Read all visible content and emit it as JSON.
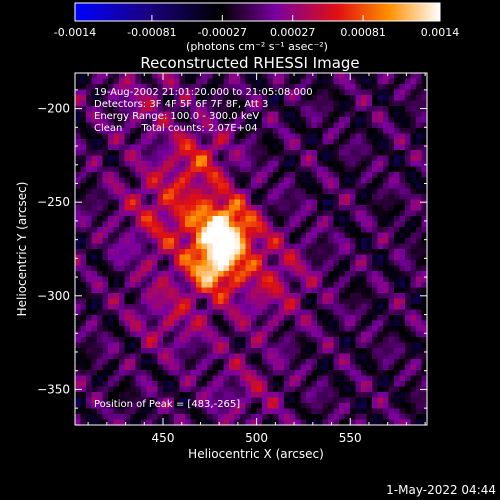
{
  "chart_data": {
    "type": "heatmap",
    "title": "Reconstructed RHESSI Image",
    "xlabel": "Heliocentric X (arcsec)",
    "ylabel": "Heliocentric Y (arcsec)",
    "xlim": [
      403,
      591
    ],
    "ylim": [
      -369,
      -181
    ],
    "xticks": [
      450,
      500,
      550
    ],
    "yticks": [
      -200,
      -250,
      -300,
      -350
    ],
    "colorbar": {
      "min": -0.0014,
      "max": 0.0014,
      "ticks": [
        "-0.0014",
        "-0.00081",
        "-0.00027",
        "0.00027",
        "0.00081",
        "0.0014"
      ],
      "tick_values": [
        -0.0014,
        -0.00081,
        -0.00027,
        0.00027,
        0.00081,
        0.0014
      ],
      "unit_label": "(photons cm⁻² s⁻¹ asec⁻²)",
      "colormap": [
        "#0000ff",
        "#1a0080",
        "#000000",
        "#7a00a0",
        "#e01010",
        "#ff9000",
        "#ffffff"
      ]
    },
    "peak": {
      "x": 483,
      "y": -265,
      "value": 0.0014
    },
    "sources": [
      {
        "x": 483,
        "y": -265,
        "sigma": 11,
        "amp": 0.0013
      },
      {
        "x": 477,
        "y": -285,
        "sigma": 9,
        "amp": 0.001
      },
      {
        "x": 455,
        "y": -255,
        "sigma": 20,
        "amp": 0.0006
      },
      {
        "x": 470,
        "y": -225,
        "sigma": 12,
        "amp": 0.0005
      },
      {
        "x": 505,
        "y": -290,
        "sigma": 18,
        "amp": 0.0005
      },
      {
        "x": 455,
        "y": -310,
        "sigma": 16,
        "amp": 0.0004
      },
      {
        "x": 440,
        "y": -195,
        "sigma": 14,
        "amp": 0.0003
      },
      {
        "x": 495,
        "y": -350,
        "sigma": 15,
        "amp": 0.0003
      }
    ],
    "annotations": [
      "19-Aug-2002 21:01:20.000 to 21:05:08.000",
      "Detectors: 3F 4F 5F 6F 7F 8F, Att 3",
      "Energy Range: 100.0 - 300.0 keV",
      "Clean      Total counts: 2.07E+04",
      "Position of Peak = [483,-265]"
    ]
  },
  "footer_date": "1-May-2022 04:44"
}
